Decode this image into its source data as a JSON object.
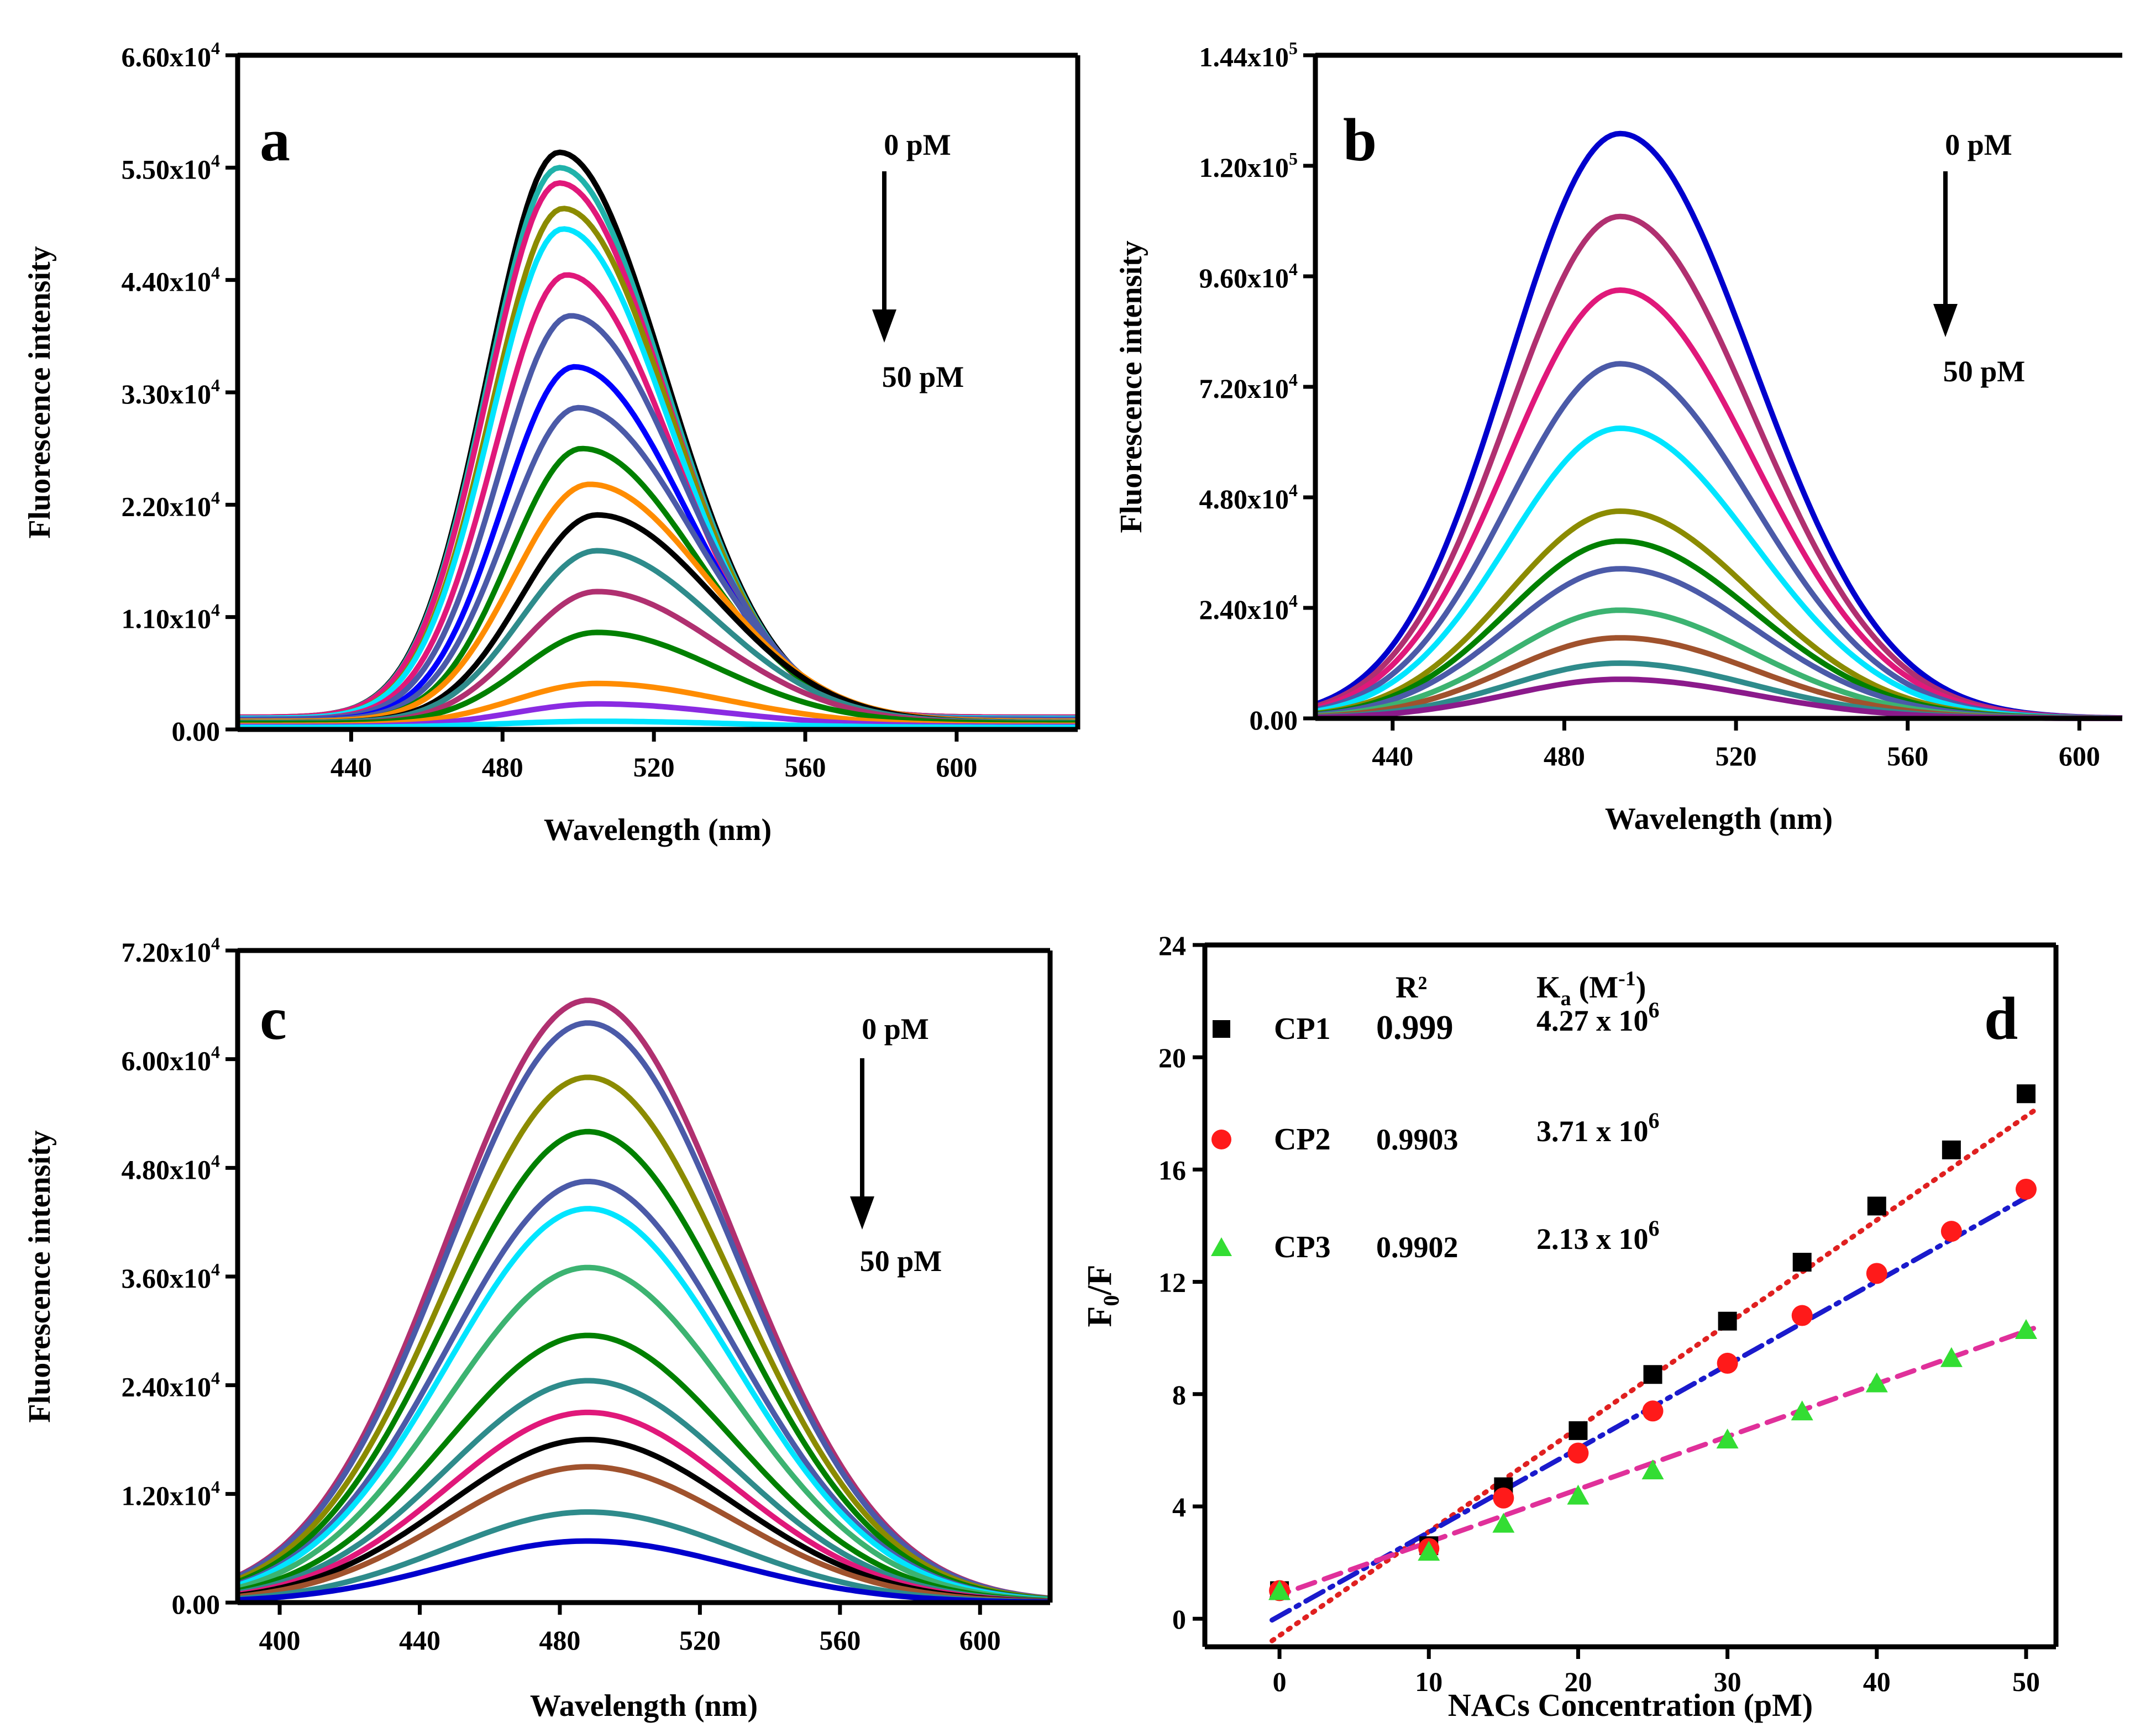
{
  "chart_data": [
    {
      "type": "line",
      "panel_label": "a",
      "xlabel": "Wavelength (nm)",
      "ylabel": "Fluorescence intensity",
      "xlim": [
        410,
        632
      ],
      "ylim": [
        0,
        66000
      ],
      "xticks": [
        440,
        480,
        520,
        560,
        600
      ],
      "yticks": [
        {
          "value": 0,
          "mant": "0.00",
          "exp": ""
        },
        {
          "value": 11000,
          "mant": "1.10x10",
          "exp": "4"
        },
        {
          "value": 22000,
          "mant": "2.20x10",
          "exp": "4"
        },
        {
          "value": 33000,
          "mant": "3.30x10",
          "exp": "4"
        },
        {
          "value": 44000,
          "mant": "4.40x10",
          "exp": "4"
        },
        {
          "value": 55000,
          "mant": "5.50x10",
          "exp": "4"
        },
        {
          "value": 66000,
          "mant": "6.60x10",
          "exp": "4"
        }
      ],
      "annotation": {
        "start": "0 pM",
        "end": "50 pM"
      },
      "series": [
        {
          "name": "s1",
          "color": "#000000",
          "peak_x": 495,
          "peak_y": 56500,
          "wl": 19,
          "wr": 28,
          "base": 1200
        },
        {
          "name": "s2",
          "color": "#20b2aa",
          "peak_x": 495,
          "peak_y": 55000,
          "wl": 19,
          "wr": 28,
          "base": 1200
        },
        {
          "name": "s3",
          "color": "#e0187a",
          "peak_x": 495,
          "peak_y": 53500,
          "wl": 19,
          "wr": 28,
          "base": 1200
        },
        {
          "name": "s4",
          "color": "#8b8b00",
          "peak_x": 496,
          "peak_y": 51000,
          "wl": 19,
          "wr": 28,
          "base": 1100
        },
        {
          "name": "s5",
          "color": "#00e5ff",
          "peak_x": 496,
          "peak_y": 49000,
          "wl": 19,
          "wr": 28,
          "base": 1100
        },
        {
          "name": "s6",
          "color": "#e0187a",
          "peak_x": 497,
          "peak_y": 44500,
          "wl": 19,
          "wr": 28,
          "base": 1000
        },
        {
          "name": "s7",
          "color": "#4b5aa8",
          "peak_x": 498,
          "peak_y": 40500,
          "wl": 19,
          "wr": 29,
          "base": 1000
        },
        {
          "name": "s8",
          "color": "#0000ff",
          "peak_x": 499,
          "peak_y": 35500,
          "wl": 19,
          "wr": 29,
          "base": 900
        },
        {
          "name": "s9",
          "color": "#4b5aa8",
          "peak_x": 500,
          "peak_y": 31500,
          "wl": 19,
          "wr": 30,
          "base": 900
        },
        {
          "name": "s10",
          "color": "#008000",
          "peak_x": 501,
          "peak_y": 27500,
          "wl": 19,
          "wr": 30,
          "base": 800
        },
        {
          "name": "s11",
          "color": "#ff8c00",
          "peak_x": 503,
          "peak_y": 24000,
          "wl": 20,
          "wr": 31,
          "base": 800
        },
        {
          "name": "s12",
          "color": "#000000",
          "peak_x": 505,
          "peak_y": 21000,
          "wl": 20,
          "wr": 31,
          "base": 700
        },
        {
          "name": "s13",
          "color": "#2e8b8b",
          "peak_x": 505,
          "peak_y": 17500,
          "wl": 20,
          "wr": 31,
          "base": 700
        },
        {
          "name": "s14",
          "color": "#b03070",
          "peak_x": 505,
          "peak_y": 13500,
          "wl": 20,
          "wr": 32,
          "base": 600
        },
        {
          "name": "s15",
          "color": "#008000",
          "peak_x": 505,
          "peak_y": 9500,
          "wl": 20,
          "wr": 32,
          "base": 600
        },
        {
          "name": "s16",
          "color": "#ff8c00",
          "peak_x": 505,
          "peak_y": 4500,
          "wl": 22,
          "wr": 34,
          "base": 400
        },
        {
          "name": "s17",
          "color": "#8a2be2",
          "peak_x": 505,
          "peak_y": 2500,
          "wl": 22,
          "wr": 34,
          "base": 300
        },
        {
          "name": "s18",
          "color": "#00e5ff",
          "peak_x": 505,
          "peak_y": 800,
          "wl": 25,
          "wr": 36,
          "base": 200
        }
      ]
    },
    {
      "type": "line",
      "panel_label": "b",
      "xlabel": "Wavelength (nm)",
      "ylabel": "Fluorescence intensity",
      "xlim": [
        422,
        610
      ],
      "ylim": [
        0,
        144000
      ],
      "xticks": [
        440,
        480,
        520,
        560,
        600
      ],
      "yticks": [
        {
          "value": 0,
          "mant": "0.00",
          "exp": ""
        },
        {
          "value": 24000,
          "mant": "2.40x10",
          "exp": "4"
        },
        {
          "value": 48000,
          "mant": "4.80x10",
          "exp": "4"
        },
        {
          "value": 72000,
          "mant": "7.20x10",
          "exp": "4"
        },
        {
          "value": 96000,
          "mant": "9.60x10",
          "exp": "4"
        },
        {
          "value": 120000,
          "mant": "1.20x10",
          "exp": "5"
        },
        {
          "value": 144000,
          "mant": "1.44x10",
          "exp": "5"
        }
      ],
      "annotation": {
        "start": "0 pM",
        "end": "50 pM"
      },
      "series": [
        {
          "name": "s1",
          "color": "#0000cd",
          "peak_x": 493,
          "peak_y": 127000,
          "wl": 26,
          "wr": 31,
          "base": 0
        },
        {
          "name": "s2",
          "color": "#b03070",
          "peak_x": 493,
          "peak_y": 109000,
          "wl": 26,
          "wr": 31,
          "base": 0
        },
        {
          "name": "s3",
          "color": "#e0187a",
          "peak_x": 493,
          "peak_y": 93000,
          "wl": 26,
          "wr": 31,
          "base": 0
        },
        {
          "name": "s4",
          "color": "#4b5aa8",
          "peak_x": 493,
          "peak_y": 77000,
          "wl": 26,
          "wr": 31,
          "base": 0
        },
        {
          "name": "s5",
          "color": "#00e5ff",
          "peak_x": 493,
          "peak_y": 63000,
          "wl": 26,
          "wr": 31,
          "base": 0
        },
        {
          "name": "s6",
          "color": "#8b8b00",
          "peak_x": 493,
          "peak_y": 45000,
          "wl": 26,
          "wr": 31,
          "base": 0
        },
        {
          "name": "s7",
          "color": "#008000",
          "peak_x": 493,
          "peak_y": 38500,
          "wl": 26,
          "wr": 31,
          "base": 0
        },
        {
          "name": "s8",
          "color": "#4b5aa8",
          "peak_x": 493,
          "peak_y": 32500,
          "wl": 26,
          "wr": 31,
          "base": 0
        },
        {
          "name": "s9",
          "color": "#3cb371",
          "peak_x": 493,
          "peak_y": 23500,
          "wl": 26,
          "wr": 31,
          "base": 0
        },
        {
          "name": "s10",
          "color": "#a0522d",
          "peak_x": 493,
          "peak_y": 17500,
          "wl": 26,
          "wr": 31,
          "base": 0
        },
        {
          "name": "s11",
          "color": "#2e8b8b",
          "peak_x": 493,
          "peak_y": 12000,
          "wl": 26,
          "wr": 31,
          "base": 0
        },
        {
          "name": "s12",
          "color": "#8b1a8b",
          "peak_x": 493,
          "peak_y": 8500,
          "wl": 26,
          "wr": 31,
          "base": 0
        }
      ]
    },
    {
      "type": "line",
      "panel_label": "c",
      "xlabel": "Wavelength (nm)",
      "ylabel": "Fluorescence intensity",
      "xlim": [
        388,
        620
      ],
      "ylim": [
        0,
        72000
      ],
      "xticks": [
        400,
        440,
        480,
        520,
        560,
        600
      ],
      "yticks": [
        {
          "value": 0,
          "mant": "0.00",
          "exp": ""
        },
        {
          "value": 12000,
          "mant": "1.20x10",
          "exp": "4"
        },
        {
          "value": 24000,
          "mant": "2.40x10",
          "exp": "4"
        },
        {
          "value": 36000,
          "mant": "3.60x10",
          "exp": "4"
        },
        {
          "value": 48000,
          "mant": "4.80x10",
          "exp": "4"
        },
        {
          "value": 60000,
          "mant": "6.00x10",
          "exp": "4"
        },
        {
          "value": 72000,
          "mant": "7.20x10",
          "exp": "4"
        }
      ],
      "annotation": {
        "start": "0 pM",
        "end": "50 pM"
      },
      "series": [
        {
          "name": "s1",
          "color": "#b03070",
          "peak_x": 488,
          "peak_y": 66500,
          "wl": 40,
          "wr": 42,
          "base": 0
        },
        {
          "name": "s2",
          "color": "#4b5aa8",
          "peak_x": 488,
          "peak_y": 64000,
          "wl": 40,
          "wr": 42,
          "base": 0
        },
        {
          "name": "s3",
          "color": "#8b8b00",
          "peak_x": 488,
          "peak_y": 58000,
          "wl": 40,
          "wr": 42,
          "base": 0
        },
        {
          "name": "s4",
          "color": "#008000",
          "peak_x": 488,
          "peak_y": 52000,
          "wl": 40,
          "wr": 42,
          "base": 0
        },
        {
          "name": "s5",
          "color": "#4b5aa8",
          "peak_x": 488,
          "peak_y": 46500,
          "wl": 40,
          "wr": 42,
          "base": 0
        },
        {
          "name": "s6",
          "color": "#00e5ff",
          "peak_x": 488,
          "peak_y": 43500,
          "wl": 40,
          "wr": 42,
          "base": 0
        },
        {
          "name": "s7",
          "color": "#3cb371",
          "peak_x": 488,
          "peak_y": 37000,
          "wl": 40,
          "wr": 42,
          "base": 0
        },
        {
          "name": "s8",
          "color": "#008000",
          "peak_x": 488,
          "peak_y": 29500,
          "wl": 40,
          "wr": 42,
          "base": 0
        },
        {
          "name": "s9",
          "color": "#2e8b8b",
          "peak_x": 488,
          "peak_y": 24500,
          "wl": 40,
          "wr": 42,
          "base": 0
        },
        {
          "name": "s10",
          "color": "#e0187a",
          "peak_x": 488,
          "peak_y": 21000,
          "wl": 40,
          "wr": 42,
          "base": 0
        },
        {
          "name": "s11",
          "color": "#000000",
          "peak_x": 488,
          "peak_y": 18000,
          "wl": 40,
          "wr": 42,
          "base": 0
        },
        {
          "name": "s12",
          "color": "#a0522d",
          "peak_x": 488,
          "peak_y": 15000,
          "wl": 40,
          "wr": 42,
          "base": 0
        },
        {
          "name": "s13",
          "color": "#2e8b8b",
          "peak_x": 488,
          "peak_y": 10000,
          "wl": 40,
          "wr": 42,
          "base": 0
        },
        {
          "name": "s14",
          "color": "#0000cd",
          "peak_x": 488,
          "peak_y": 6800,
          "wl": 40,
          "wr": 42,
          "base": 0
        }
      ]
    },
    {
      "type": "scatter",
      "panel_label": "d",
      "xlabel": "NACs Concentration (pM)",
      "ylabel_main": "F",
      "ylabel_sub": "0",
      "ylabel_tail": "/F",
      "xlim": [
        -5,
        52
      ],
      "ylim": [
        -1,
        24
      ],
      "xticks": [
        0,
        10,
        20,
        30,
        40,
        50
      ],
      "yticks": [
        0,
        4,
        8,
        12,
        16,
        20,
        24
      ],
      "legend": {
        "r2_header": "R²",
        "ka_header_main": "K",
        "ka_header_sub": "a",
        "ka_header_tail": " (M",
        "ka_header_sup": "-1",
        "ka_header_close": ")"
      },
      "series": [
        {
          "name": "CP1",
          "r2": "0.999",
          "ka_mant": "4.27 x 10",
          "ka_exp": "6",
          "marker": "square",
          "color": "#000000",
          "fit_color": "#e02020",
          "fit_style": "dotted",
          "fit": {
            "slope": 0.37,
            "intercept": -0.6
          },
          "x": [
            0,
            10,
            15,
            20,
            25,
            30,
            35,
            40,
            45,
            50
          ],
          "y": [
            1.0,
            2.6,
            4.7,
            6.7,
            8.7,
            10.6,
            12.7,
            14.7,
            16.7,
            18.7
          ]
        },
        {
          "name": "CP2",
          "r2": "0.9903",
          "ka_mant": "3.71 x 10",
          "ka_exp": "6",
          "marker": "circle",
          "color": "#ff1a1a",
          "fit_color": "#1a1acc",
          "fit_style": "dashdot",
          "fit": {
            "slope": 0.298,
            "intercept": 0.1
          },
          "x": [
            0,
            10,
            15,
            20,
            25,
            30,
            35,
            40,
            45,
            50
          ],
          "y": [
            1.0,
            2.5,
            4.3,
            5.9,
            7.4,
            9.1,
            10.8,
            12.3,
            13.8,
            15.3
          ]
        },
        {
          "name": "CP3",
          "r2": "0.9902",
          "ka_mant": "2.13 x 10",
          "ka_exp": "6",
          "marker": "triangle",
          "color": "#33dd33",
          "fit_color": "#e0309a",
          "fit_style": "dashed",
          "fit": {
            "slope": 0.188,
            "intercept": 0.85
          },
          "x": [
            0,
            10,
            15,
            20,
            25,
            30,
            35,
            40,
            45,
            50
          ],
          "y": [
            1.0,
            2.4,
            3.4,
            4.4,
            5.3,
            6.4,
            7.4,
            8.4,
            9.3,
            10.3
          ]
        }
      ]
    }
  ]
}
